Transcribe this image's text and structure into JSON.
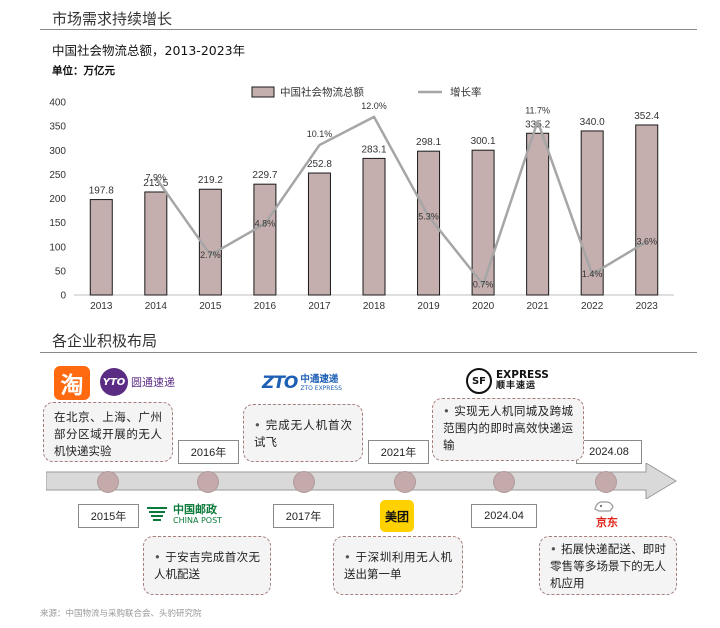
{
  "header": {
    "section1_title": "市场需求持续增长",
    "chart_title": "中国社会物流总额，2013-2023年",
    "chart_unit": "单位：万亿元",
    "section2_title": "各企业积极布局"
  },
  "chart_data": {
    "type": "bar",
    "categories": [
      "2013",
      "2014",
      "2015",
      "2016",
      "2017",
      "2018",
      "2019",
      "2020",
      "2021",
      "2022",
      "2023"
    ],
    "series": [
      {
        "name": "中国社会物流总额",
        "type": "bar",
        "values": [
          197.8,
          213.5,
          219.2,
          229.7,
          252.8,
          283.1,
          298.1,
          300.1,
          335.2,
          340.0,
          352.4
        ],
        "labels": [
          "197.8",
          "213.5",
          "219.2",
          "229.7",
          "252.8",
          "283.1",
          "298.1",
          "300.1",
          "335.2",
          "340.0",
          "352.4"
        ]
      },
      {
        "name": "增长率",
        "type": "line",
        "values": [
          null,
          7.9,
          2.7,
          4.8,
          10.1,
          12.0,
          5.3,
          0.7,
          11.7,
          1.4,
          3.6
        ],
        "labels": [
          "",
          "7.9%",
          "2.7%",
          "4.8%",
          "10.1%",
          "12.0%",
          "5.3%",
          "0.7%",
          "11.7%",
          "1.4%",
          "3.6%"
        ]
      }
    ],
    "y_ticks": [
      "0",
      "50",
      "100",
      "150",
      "200",
      "250",
      "300",
      "350",
      "400"
    ],
    "ylim": [
      0,
      400
    ],
    "rate_ylim": [
      0,
      13
    ],
    "colors": {
      "bar": "#c4aeae",
      "bar_border": "#1a1a1a",
      "line": "#a6a6a6"
    },
    "legend_position": "top"
  },
  "timeline": {
    "dates": [
      "2015年",
      "2016年",
      "2017年",
      "2021年",
      "2024.04",
      "2024.08"
    ],
    "events": [
      {
        "text": "在北京、上海、广州部分区域开展的无人机快递实验"
      },
      {
        "text": "于安吉完成首次无人机配送",
        "bullet": "•"
      },
      {
        "text": "完成无人机首次试飞",
        "bullet": "•"
      },
      {
        "text": "于深圳利用无人机送出第一单",
        "bullet": "•"
      },
      {
        "text": "实现无人机同城及跨城范围内的即时高效快递运输",
        "bullet": "•"
      },
      {
        "text": "拓展快递配送、即时零售等多场景下的无人机应用",
        "bullet": "•"
      }
    ],
    "colors": {
      "dot": "#c4aaaa",
      "box_border": "#a77e7e",
      "arrow": "#d9d9d9"
    }
  },
  "logos": {
    "taobao": "淘",
    "yto_mark": "YTO",
    "yto_text": "圆通速递",
    "zto_mark": "ZTO",
    "zto_cn": "中通速递",
    "zto_en": "ZTO EXPRESS",
    "sf_mark": "SF",
    "sf_en": "EXPRESS",
    "sf_cn": "顺丰速运",
    "cp_cn": "中国邮政",
    "cp_en": "CHINA POST",
    "meituan": "美团",
    "jd": "京东"
  },
  "icons": {
    "china_post_mark": "post-emblem-icon",
    "jd_dog": "jd-dog-icon"
  },
  "footer": {
    "source": "来源：中国物流与采购联合会、头豹研究院"
  }
}
